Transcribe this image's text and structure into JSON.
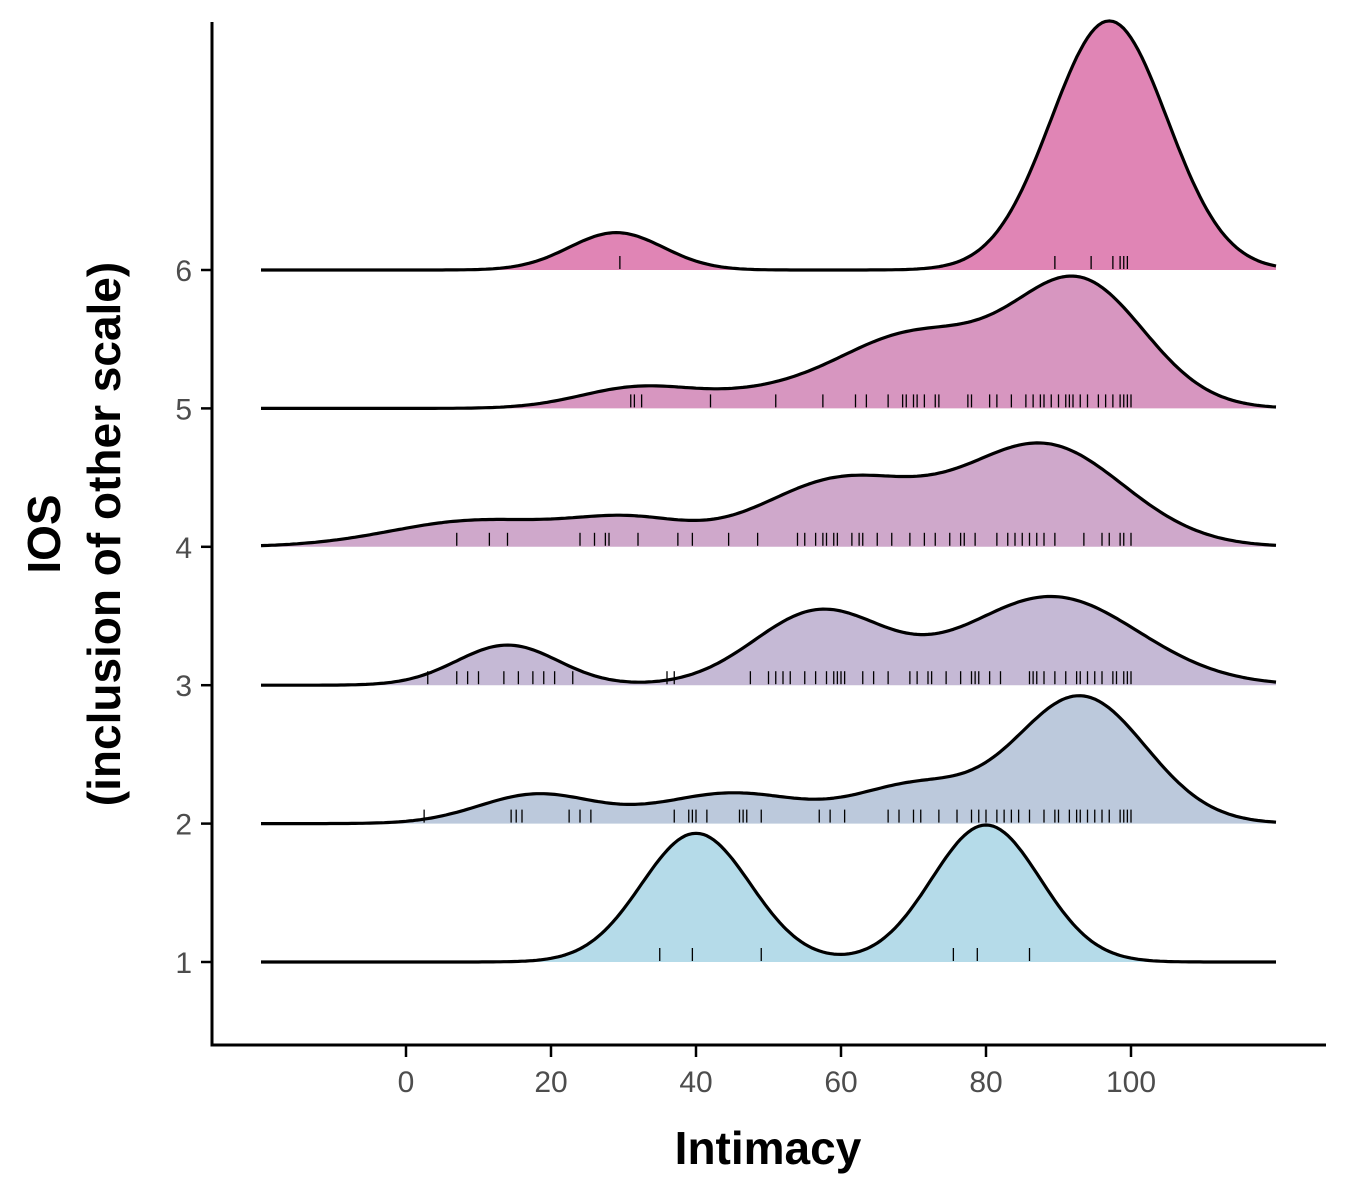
{
  "chart_data": {
    "type": "ridgeline",
    "xlabel": "Intimacy",
    "ylabel_line1": "IOS",
    "ylabel_line2": "(inclusion of other scale)",
    "xlim": [
      -20,
      120
    ],
    "x_ticks": [
      0,
      20,
      40,
      60,
      80,
      100
    ],
    "y_categories": [
      "1",
      "2",
      "3",
      "4",
      "5",
      "6"
    ],
    "grid": false,
    "legend": "none",
    "series": [
      {
        "category": "1",
        "color": "#b5dbe9",
        "density_peaks": [
          {
            "mean": 40,
            "sd": 7.5,
            "height": 0.93
          },
          {
            "mean": 80,
            "sd": 7.5,
            "height": 0.99
          }
        ],
        "observations": [
          35,
          39.5,
          49,
          75.5,
          78.8,
          86
        ]
      },
      {
        "category": "2",
        "color": "#bcc9dc",
        "density_peaks": [
          {
            "mean": 18,
            "sd": 8,
            "height": 0.21
          },
          {
            "mean": 45,
            "sd": 10,
            "height": 0.22
          },
          {
            "mean": 70,
            "sd": 8,
            "height": 0.26
          },
          {
            "mean": 93,
            "sd": 9,
            "height": 0.92
          }
        ],
        "observations": [
          2.5,
          14.5,
          15.2,
          16,
          22.5,
          24,
          25.5,
          37,
          39,
          39.5,
          40,
          41.5,
          46,
          46.5,
          47,
          49,
          57,
          58.5,
          60.5,
          66.5,
          68,
          70,
          71,
          73.5,
          76,
          78,
          79,
          80,
          81.5,
          82.5,
          83.5,
          84.5,
          86,
          88,
          89.5,
          90,
          91.5,
          92.5,
          93,
          94,
          95,
          96,
          97,
          98.5,
          99,
          99.5,
          100
        ]
      },
      {
        "category": "3",
        "color": "#c5b9d5",
        "density_peaks": [
          {
            "mean": 14,
            "sd": 7,
            "height": 0.29
          },
          {
            "mean": 57,
            "sd": 9,
            "height": 0.53
          },
          {
            "mean": 89,
            "sd": 12,
            "height": 0.64
          }
        ],
        "observations": [
          3,
          7,
          8.5,
          10,
          13.5,
          15.5,
          17.5,
          19,
          20.5,
          23,
          36,
          37,
          47.5,
          50,
          51,
          52,
          53,
          55,
          56.5,
          58,
          59,
          59.5,
          60,
          60.5,
          63,
          64.5,
          66.5,
          69.5,
          70.5,
          72,
          72.5,
          74.5,
          76.5,
          78,
          78.5,
          79,
          80.5,
          82,
          86,
          86.5,
          87,
          88,
          89.5,
          91,
          92.5,
          93,
          94,
          95,
          96,
          97.5,
          98,
          99,
          99.5,
          100
        ]
      },
      {
        "category": "4",
        "color": "#cfa8cb",
        "density_peaks": [
          {
            "mean": 10,
            "sd": 12,
            "height": 0.19
          },
          {
            "mean": 31,
            "sd": 8,
            "height": 0.17
          },
          {
            "mean": 60,
            "sd": 11,
            "height": 0.48
          },
          {
            "mean": 88,
            "sd": 11,
            "height": 0.73
          }
        ],
        "observations": [
          7,
          11.5,
          14,
          24,
          26,
          27.5,
          28,
          32,
          37.5,
          39.5,
          44.5,
          48.5,
          54,
          55,
          56.5,
          57.5,
          58,
          59,
          59.5,
          61.5,
          62.5,
          63,
          65,
          67,
          69.5,
          71.5,
          73,
          75,
          76.5,
          77,
          78.5,
          81.5,
          83,
          84,
          85,
          86,
          87,
          88,
          89.5,
          93.5,
          96,
          97,
          98.5,
          99,
          100
        ]
      },
      {
        "category": "5",
        "color": "#d796c0",
        "density_peaks": [
          {
            "mean": 32,
            "sd": 8,
            "height": 0.15
          },
          {
            "mean": 48,
            "sd": 8,
            "height": 0.07
          },
          {
            "mean": 70,
            "sd": 11,
            "height": 0.53
          },
          {
            "mean": 93,
            "sd": 9,
            "height": 0.89
          }
        ],
        "observations": [
          31,
          31.5,
          32.5,
          42,
          51,
          57.5,
          62,
          63.5,
          66.5,
          68.5,
          69,
          70,
          70.5,
          71.5,
          73,
          73.5,
          77.5,
          78,
          80.5,
          81.5,
          83.5,
          85.5,
          86.5,
          87.5,
          88,
          89,
          90,
          91,
          91.5,
          92,
          93,
          94,
          95.5,
          96.5,
          97.5,
          98.5,
          99,
          99.5,
          100
        ]
      },
      {
        "category": "6",
        "color": "#e085b5",
        "density_peaks": [
          {
            "mean": 29,
            "sd": 6.5,
            "height": 0.27
          },
          {
            "mean": 97,
            "sd": 8,
            "height": 1.8
          }
        ],
        "observations": [
          29.5,
          89.5,
          94.5,
          97.5,
          98.5,
          99,
          99.5
        ]
      }
    ]
  }
}
